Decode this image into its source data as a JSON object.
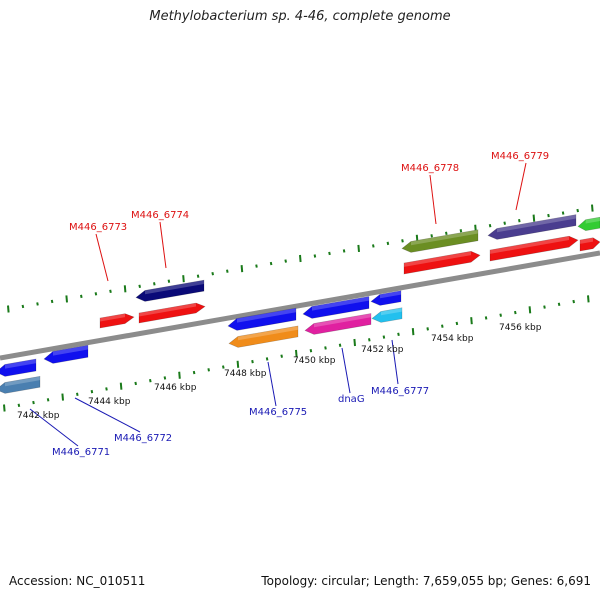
{
  "title": "Methylobacterium sp. 4-46, complete genome",
  "footer": {
    "accession": "Accession: NC_010511",
    "summary": "Topology: circular; Length: 7,659,055 bp; Genes: 6,691"
  },
  "colors": {
    "backbone": "#8c8c8c",
    "tick": "#1a7a1a",
    "top_label": "#dd1111",
    "bottom_label": "#1a1ab4"
  },
  "kbp_labels": [
    "7442 kbp",
    "7444 kbp",
    "7446 kbp",
    "7448 kbp",
    "7450 kbp",
    "7452 kbp",
    "7454 kbp",
    "7456 kbp"
  ],
  "top_genes": [
    {
      "label": "M446_6773",
      "color": "#dd1111"
    },
    {
      "label": "M446_6774",
      "color": "#dd1111"
    },
    {
      "label": "M446_6778",
      "color": "#dd1111"
    },
    {
      "label": "M446_6779",
      "color": "#dd1111"
    }
  ],
  "bottom_genes": [
    {
      "label": "M446_6771",
      "color": "#1a1ab4"
    },
    {
      "label": "M446_6772",
      "color": "#1a1ab4"
    },
    {
      "label": "M446_6775",
      "color": "#1a1ab4"
    },
    {
      "label": "dnaG",
      "color": "#1a1ab4"
    },
    {
      "label": "M446_6777",
      "color": "#1a1ab4"
    }
  ]
}
